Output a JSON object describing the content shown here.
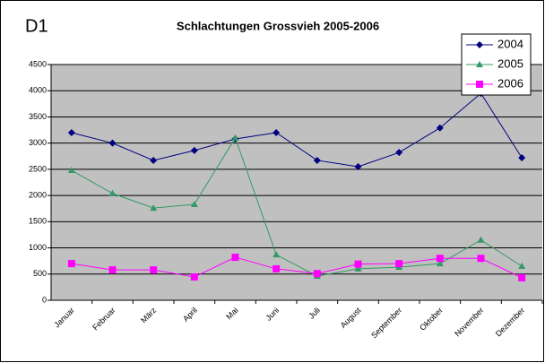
{
  "chart_data": {
    "type": "line",
    "label": "D1",
    "title": "Schlachtungen Grossvieh 2005-2006",
    "categories": [
      "Januar",
      "Februar",
      "März",
      "April",
      "Mai",
      "Juni",
      "Juli",
      "August",
      "September",
      "Oktober",
      "November",
      "Dezember"
    ],
    "series": [
      {
        "name": "2004",
        "color": "#000080",
        "marker": "diamond",
        "values": [
          3200,
          3000,
          2670,
          2860,
          3080,
          3200,
          2670,
          2550,
          2820,
          3290,
          3950,
          2720
        ]
      },
      {
        "name": "2005",
        "color": "#339966",
        "marker": "triangle",
        "values": [
          2480,
          2040,
          1760,
          1830,
          3100,
          870,
          460,
          600,
          630,
          700,
          1150,
          650
        ]
      },
      {
        "name": "2006",
        "color": "#FF00FF",
        "marker": "square",
        "values": [
          700,
          580,
          580,
          445,
          820,
          600,
          510,
          690,
          700,
          800,
          800,
          430
        ]
      }
    ],
    "ylim": [
      0,
      4500
    ],
    "yticks": [
      0,
      500,
      1000,
      1500,
      2000,
      2500,
      3000,
      3500,
      4000,
      4500
    ],
    "grid": true,
    "legend": "top-right"
  }
}
